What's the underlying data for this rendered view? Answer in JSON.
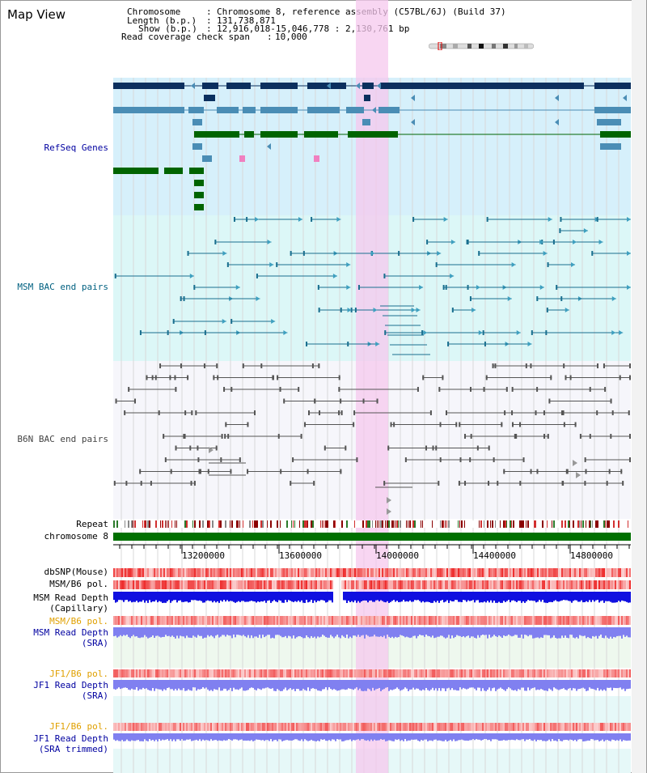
{
  "header": {
    "title": "Map View",
    "chromosome_label": "Chromosome",
    "chromosome_value": "Chromosome 8, reference assembly (C57BL/6J) (Build 37)",
    "length_label": "Length (b.p.)",
    "length_value": "131,738,871",
    "show_label": "Show (b.p.)",
    "show_value": "12,916,018-15,046,778 : 2,130,761 bp",
    "coverage_label": "Read coverage check span",
    "coverage_value": "10,000"
  },
  "tracks": {
    "refseq": "RefSeq Genes",
    "msm_bac": "MSM BAC end pairs",
    "b6n_bac": "B6N BAC end pairs",
    "repeat": "Repeat",
    "chromosome": "chromosome 8",
    "dbsnp": "dbSNP(Mouse)",
    "msm_b6_pol": "MSM/B6 pol.",
    "msm_read_depth_cap_1": "MSM Read Depth",
    "msm_read_depth_cap_2": "(Capillary)",
    "msm_b6_pol_2": "MSM/B6 pol.",
    "msm_read_depth_sra_1": "MSM Read Depth",
    "msm_read_depth_sra_2": "(SRA)",
    "jf1_b6_pol": "JF1/B6 pol.",
    "jf1_read_depth_sra_1": "JF1 Read Depth",
    "jf1_read_depth_sra_2": "(SRA)",
    "jf1_b6_pol_2": "JF1/B6 pol.",
    "jf1_read_depth_trim_1": "JF1 Read Depth",
    "jf1_read_depth_trim_2": "(SRA trimmed)"
  },
  "axis": {
    "ticks": [
      "13200000",
      "13600000",
      "14000000",
      "14400000",
      "14800000"
    ]
  },
  "colors": {
    "navy": "#0b2f5e",
    "steel": "#4a8db5",
    "green": "#006400",
    "teal": "#1a6f8f",
    "gray": "#555555",
    "refseq_bg": "#d6f0fb",
    "msm_bg": "#dcf7f7",
    "highlight": "#f5c8ee",
    "label_blue": "#0000a0",
    "label_teal": "#006080",
    "label_orange": "#e0a000"
  }
}
